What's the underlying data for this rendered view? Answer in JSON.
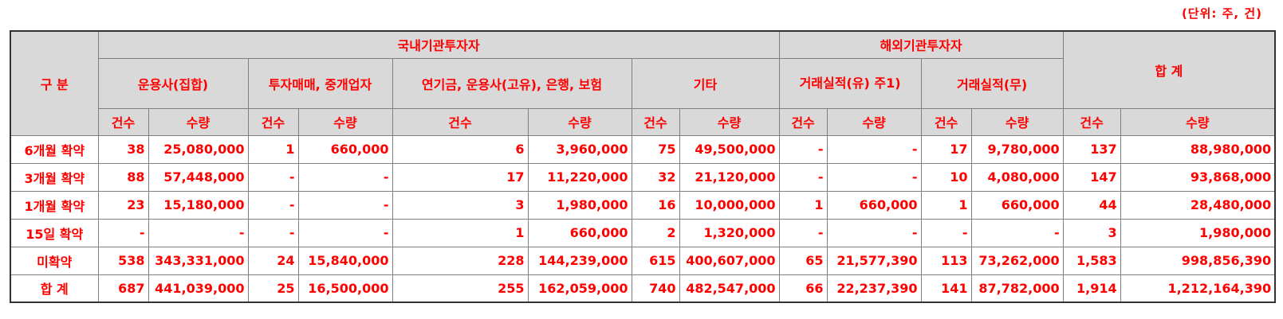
{
  "unit_note": "(단위: 주, 건)",
  "headers": {
    "category": "구 분",
    "domestic": "국내기관투자자",
    "foreign": "해외기관투자자",
    "total": "합 계",
    "asset_mgmt_collective": "운용사(집합)",
    "investment_dealer": "투자매매, 중개업자",
    "pension_etc": "연기금, 운용사(고유), 은행, 보험",
    "other": "기타",
    "trade_record_yes": "거래실적(유) 주1)",
    "trade_record_no": "거래실적(무)",
    "count": "건수",
    "quantity": "수량"
  },
  "rows": [
    {
      "label": "6개월 확약",
      "cells": [
        "38",
        "25,080,000",
        "1",
        "660,000",
        "6",
        "3,960,000",
        "75",
        "49,500,000",
        "-",
        "-",
        "17",
        "9,780,000",
        "137",
        "88,980,000"
      ]
    },
    {
      "label": "3개월 확약",
      "cells": [
        "88",
        "57,448,000",
        "-",
        "-",
        "17",
        "11,220,000",
        "32",
        "21,120,000",
        "-",
        "-",
        "10",
        "4,080,000",
        "147",
        "93,868,000"
      ]
    },
    {
      "label": "1개월 확약",
      "cells": [
        "23",
        "15,180,000",
        "-",
        "-",
        "3",
        "1,980,000",
        "16",
        "10,000,000",
        "1",
        "660,000",
        "1",
        "660,000",
        "44",
        "28,480,000"
      ]
    },
    {
      "label": "15일 확약",
      "cells": [
        "-",
        "-",
        "-",
        "-",
        "1",
        "660,000",
        "2",
        "1,320,000",
        "-",
        "-",
        "-",
        "-",
        "3",
        "1,980,000"
      ]
    },
    {
      "label": "미확약",
      "cells": [
        "538",
        "343,331,000",
        "24",
        "15,840,000",
        "228",
        "144,239,000",
        "615",
        "400,607,000",
        "65",
        "21,577,390",
        "113",
        "73,262,000",
        "1,583",
        "998,856,390"
      ]
    },
    {
      "label": "합 계",
      "cells": [
        "687",
        "441,039,000",
        "25",
        "16,500,000",
        "255",
        "162,059,000",
        "740",
        "482,547,000",
        "66",
        "22,237,390",
        "141",
        "87,782,000",
        "1,914",
        "1,212,164,390"
      ]
    }
  ]
}
